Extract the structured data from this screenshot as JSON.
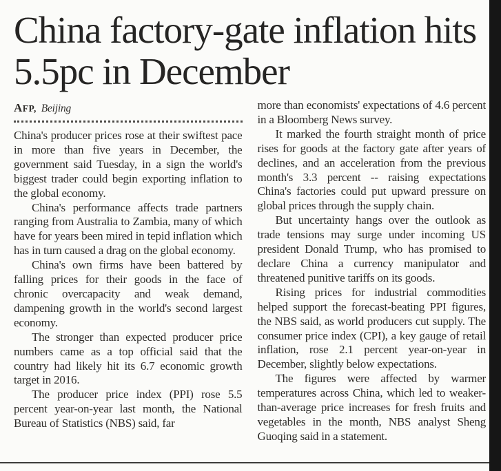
{
  "page": {
    "background_color": "#fbfbf9",
    "text_color": "#2f2d2a",
    "right_border_color": "#161616",
    "bottom_rule_color": "#3d3d3b"
  },
  "article": {
    "headline": "China factory-gate inflation hits 5.5pc in December",
    "byline": {
      "agency": "AFP,",
      "location": "Beijing"
    },
    "columns": {
      "left": [
        "China's producer prices rose at their swiftest pace in more than five years in December, the government said Tuesday, in a sign the world's biggest trader could begin exporting inflation to the global economy.",
        "China's performance affects trade partners ranging from Australia to Zambia, many of which have for years been mired in tepid inflation which has in turn caused a drag on the global economy.",
        "China's own firms have been battered by falling prices for their goods in the face of chronic overcapacity and weak demand, dampening growth in the world's second largest economy.",
        "The stronger than expected producer price numbers came as a top official said that the country had likely hit its 6.7 economic growth target in 2016.",
        "The producer price index (PPI) rose 5.5 percent year-on-year last month, the National Bureau of Statistics (NBS) said, far"
      ],
      "right": [
        "more than economists' expectations of 4.6 percent in a Bloomberg News survey.",
        "It marked the fourth straight month of price rises for goods at the factory gate after years of declines, and an acceleration from the previous month's 3.3 percent -- raising expectations China's factories could put upward pressure on global prices through the supply chain.",
        "But uncertainty hangs over the outlook as trade tensions may surge under incoming US president Donald Trump, who has promised to declare China a currency manipulator and threatened punitive tariffs on its goods.",
        "Rising prices for industrial commodities helped support the forecast-beating PPI figures, the NBS said, as world producers cut supply. The consumer price index (CPI), a key gauge of retail inflation, rose 2.1 percent year-on-year in December, slightly below expectations.",
        "The figures were affected by warmer temperatures across China, which led to weaker-than-average price increases for fresh fruits and vegetables in the month, NBS analyst Sheng Guoqing said in a statement."
      ]
    }
  }
}
